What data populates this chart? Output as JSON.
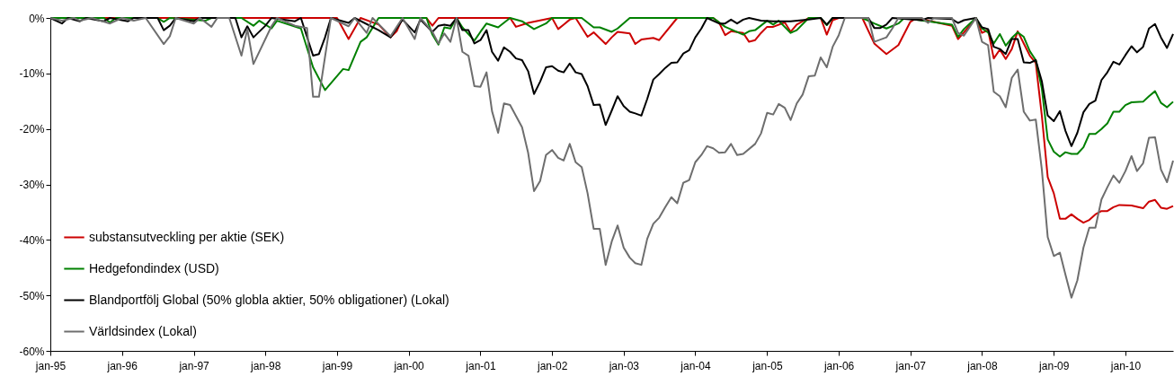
{
  "chart_data": {
    "type": "line",
    "ylim": [
      -60,
      0
    ],
    "yticks": [
      {
        "value": -60,
        "label": "-60%"
      },
      {
        "value": -50,
        "label": "-50%"
      },
      {
        "value": -40,
        "label": "-40%"
      },
      {
        "value": -30,
        "label": "-30%"
      },
      {
        "value": -20,
        "label": "-20%"
      },
      {
        "value": -10,
        "label": "-10%"
      },
      {
        "value": 0,
        "label": "0%"
      }
    ],
    "xlim": [
      "1995-01",
      "2010-09"
    ],
    "xticks": [
      {
        "value": "1995-01",
        "label": "jan-95"
      },
      {
        "value": "1996-01",
        "label": "jan-96"
      },
      {
        "value": "1997-01",
        "label": "jan-97"
      },
      {
        "value": "1998-01",
        "label": "jan-98"
      },
      {
        "value": "1999-01",
        "label": "jan-99"
      },
      {
        "value": "2000-01",
        "label": "jan-00"
      },
      {
        "value": "2001-01",
        "label": "jan-01"
      },
      {
        "value": "2002-01",
        "label": "jan-02"
      },
      {
        "value": "2003-01",
        "label": "jan-03"
      },
      {
        "value": "2004-01",
        "label": "jan-04"
      },
      {
        "value": "2005-01",
        "label": "jan-05"
      },
      {
        "value": "2006-01",
        "label": "jan-06"
      },
      {
        "value": "2007-01",
        "label": "jan-07"
      },
      {
        "value": "2008-01",
        "label": "jan-08"
      },
      {
        "value": "2009-01",
        "label": "jan-09"
      },
      {
        "value": "2010-01",
        "label": "jan-10"
      }
    ],
    "legend": "bottom left",
    "series": [
      {
        "name": "substansutveckling per aktie (SEK)",
        "color": "#cc0000",
        "x": [
          "1995-01",
          "1999-01",
          "1999-03",
          "1999-05",
          "1999-08",
          "1999-10",
          "1999-11",
          "1999-12",
          "2000-04",
          "2000-05",
          "2000-06",
          "2001-06",
          "2001-07",
          "2001-09",
          "2002-01",
          "2002-02",
          "2002-03",
          "2002-04",
          "2002-05",
          "2002-07",
          "2002-08",
          "2002-10",
          "2002-11",
          "2002-12",
          "2003-02",
          "2003-03",
          "2003-04",
          "2003-06",
          "2003-07",
          "2003-10",
          "2004-04",
          "2004-05",
          "2004-06",
          "2004-07",
          "2004-09",
          "2004-10",
          "2004-11",
          "2004-12",
          "2005-01",
          "2005-02",
          "2005-04",
          "2005-05",
          "2005-06",
          "2005-08",
          "2005-10",
          "2005-11",
          "2005-12",
          "2006-01",
          "2006-05",
          "2006-07",
          "2006-09",
          "2006-11",
          "2007-01",
          "2007-02",
          "2007-08",
          "2007-09",
          "2007-10",
          "2007-12",
          "2008-01",
          "2008-02",
          "2008-03",
          "2008-04",
          "2008-05",
          "2008-06",
          "2008-07",
          "2008-08",
          "2008-09",
          "2008-10",
          "2008-11",
          "2008-12",
          "2009-01",
          "2009-02",
          "2009-03",
          "2009-04",
          "2009-05",
          "2009-06",
          "2009-07",
          "2009-08",
          "2009-09",
          "2009-10",
          "2009-11",
          "2009-12",
          "2010-02",
          "2010-04",
          "2010-05",
          "2010-06",
          "2010-07",
          "2010-08",
          "2010-09"
        ],
        "values": [
          0,
          0,
          -3.8,
          0,
          -1.2,
          -3.5,
          -2.4,
          0,
          0,
          -1.4,
          0,
          0,
          -1.6,
          -0.9,
          0,
          -2,
          -1.2,
          -0.3,
          0,
          -3.4,
          -2.6,
          -4.7,
          -3.5,
          -2.5,
          -2.8,
          -4.7,
          -3.9,
          -3.6,
          -4,
          0,
          0,
          -0.8,
          -3.1,
          -2.4,
          -2.7,
          -4.3,
          -4,
          -2.7,
          -1.6,
          -1.6,
          -0.8,
          -2.5,
          -1.2,
          0,
          0,
          -3,
          -0.4,
          0,
          0,
          -4.6,
          -6.5,
          -4.9,
          -0.7,
          0,
          -1.4,
          -3.8,
          -2.6,
          0,
          -2.7,
          -2.2,
          -7.3,
          -5.7,
          -7.4,
          -5.6,
          -2.4,
          -4.6,
          -6.8,
          -8.1,
          -17.6,
          -28.7,
          -31.6,
          -36.2,
          -36.2,
          -35.4,
          -36.2,
          -36.9,
          -36.4,
          -35.4,
          -34.8,
          -34.8,
          -34.1,
          -33.7,
          -33.8,
          -34.3,
          -33.1,
          -32.8,
          -34.2,
          -34.4,
          -33.9
        ]
      },
      {
        "name": "Hedgefondindex (USD)",
        "color": "#008000",
        "x": [
          "1995-01",
          "1995-10",
          "1995-11",
          "1995-12",
          "1996-07",
          "1996-08",
          "1996-09",
          "1997-03",
          "1997-04",
          "1997-09",
          "1997-11",
          "1997-12",
          "1998-02",
          "1998-03",
          "1998-07",
          "1998-09",
          "1998-11",
          "1999-02",
          "1999-03",
          "1999-05",
          "1999-06",
          "1999-08",
          "2000-04",
          "2000-05",
          "2000-06",
          "2000-07",
          "2000-08",
          "2000-09",
          "2000-10",
          "2000-12",
          "2001-01",
          "2001-02",
          "2001-04",
          "2001-06",
          "2001-08",
          "2001-10",
          "2001-12",
          "2002-01",
          "2002-06",
          "2002-08",
          "2002-09",
          "2002-11",
          "2002-12",
          "2003-02",
          "2004-04",
          "2004-06",
          "2004-09",
          "2004-10",
          "2004-11",
          "2005-01",
          "2005-02",
          "2005-03",
          "2005-05",
          "2005-06",
          "2005-08",
          "2005-10",
          "2005-11",
          "2005-12",
          "2006-05",
          "2006-07",
          "2006-09",
          "2006-11",
          "2006-12",
          "2007-08",
          "2007-09",
          "2007-10",
          "2007-12",
          "2008-01",
          "2008-02",
          "2008-03",
          "2008-04",
          "2008-05",
          "2008-06",
          "2008-07",
          "2008-08",
          "2008-09",
          "2008-10",
          "2008-11",
          "2008-12",
          "2009-01",
          "2009-02",
          "2009-03",
          "2009-04",
          "2009-05",
          "2009-06",
          "2009-07",
          "2009-08",
          "2009-09",
          "2009-10",
          "2009-11",
          "2009-12",
          "2010-01",
          "2010-02",
          "2010-04",
          "2010-05",
          "2010-06",
          "2010-07",
          "2010-08",
          "2010-09"
        ],
        "values": [
          0,
          0,
          -0.8,
          0,
          0,
          -0.7,
          0,
          -0.5,
          0,
          0,
          -1.4,
          -0.5,
          -1.9,
          -0.5,
          -1.9,
          -8.9,
          -13,
          -9.2,
          -9.4,
          -4.3,
          -3.5,
          0,
          0,
          -3,
          -4.8,
          -1.7,
          -1.9,
          0,
          -1.7,
          -4.1,
          -2.5,
          -1,
          -1.7,
          0,
          -0.6,
          -2,
          -1,
          0,
          0,
          -1.7,
          -1.7,
          -2.5,
          -1.9,
          0,
          0,
          -1.6,
          -3,
          -2.4,
          -2.2,
          -0.5,
          -1.2,
          -0.5,
          -2.7,
          -2.2,
          0,
          0,
          -1.3,
          0,
          0,
          -1,
          -1.9,
          -1,
          0,
          -1.2,
          -3.4,
          -2,
          0,
          -1.9,
          -2.6,
          -4.6,
          -2.9,
          -5,
          -3.6,
          -2.6,
          -3.4,
          -6,
          -7.6,
          -12.7,
          -21.9,
          -24.1,
          -25,
          -24.2,
          -24.5,
          -24.5,
          -23.3,
          -20.9,
          -20.9,
          -20,
          -19,
          -16.9,
          -16.9,
          -15.7,
          -15.2,
          -15.1,
          -14.1,
          -13.2,
          -15.3,
          -16.1,
          -15.1
        ]
      },
      {
        "name": "Blandportfölj Global (50% globla aktier, 50% obligationer) (Lokal)",
        "color": "#000000",
        "x": [
          "1995-01",
          "1995-03",
          "1995-04",
          "1995-06",
          "1995-07",
          "1995-10",
          "1995-11",
          "1996-02",
          "1996-03",
          "1996-07",
          "1996-08",
          "1996-09",
          "1996-10",
          "1997-01",
          "1997-02",
          "1997-08",
          "1997-09",
          "1997-10",
          "1997-11",
          "1998-01",
          "1998-02",
          "1998-06",
          "1998-07",
          "1998-09",
          "1998-10",
          "1998-11",
          "1998-12",
          "1999-03",
          "1999-04",
          "1999-08",
          "1999-10",
          "1999-12",
          "2000-02",
          "2000-03",
          "2000-05",
          "2000-06",
          "2000-07",
          "2000-08",
          "2000-09",
          "2000-10",
          "2000-11",
          "2000-12",
          "2001-01",
          "2001-02",
          "2001-03",
          "2001-04",
          "2001-05",
          "2001-06",
          "2001-07",
          "2001-08",
          "2001-09",
          "2001-10",
          "2001-11",
          "2001-12",
          "2002-01",
          "2002-02",
          "2002-03",
          "2002-04",
          "2002-05",
          "2002-06",
          "2002-07",
          "2002-08",
          "2002-09",
          "2002-10",
          "2002-11",
          "2002-12",
          "2003-01",
          "2003-02",
          "2003-03",
          "2003-04",
          "2003-05",
          "2003-06",
          "2003-07",
          "2003-08",
          "2003-09",
          "2003-10",
          "2003-11",
          "2003-12",
          "2004-01",
          "2004-02",
          "2004-03",
          "2004-05",
          "2004-06",
          "2004-07",
          "2004-08",
          "2004-09",
          "2004-10",
          "2004-12",
          "2005-02",
          "2005-05",
          "2005-08",
          "2005-10",
          "2005-11",
          "2005-12",
          "2006-06",
          "2006-07",
          "2006-08",
          "2006-09",
          "2006-10",
          "2007-03",
          "2007-04",
          "2007-08",
          "2007-09",
          "2007-10",
          "2007-12",
          "2008-01",
          "2008-02",
          "2008-03",
          "2008-04",
          "2008-05",
          "2008-06",
          "2008-07",
          "2008-08",
          "2008-09",
          "2008-10",
          "2008-11",
          "2008-12",
          "2009-01",
          "2009-02",
          "2009-03",
          "2009-04",
          "2009-05",
          "2009-06",
          "2009-07",
          "2009-08",
          "2009-09",
          "2009-10",
          "2009-11",
          "2009-12",
          "2010-01",
          "2010-02",
          "2010-03",
          "2010-04",
          "2010-05",
          "2010-06",
          "2010-07",
          "2010-08",
          "2010-09"
        ],
        "values": [
          0,
          -1,
          0,
          -0.6,
          0,
          -0.6,
          0,
          -0.6,
          0,
          0,
          -2.2,
          -1.4,
          0,
          -0.6,
          0,
          0,
          -3.5,
          -1.5,
          -3.5,
          -1.4,
          0,
          -0.6,
          0,
          -6.8,
          -6.5,
          -3.5,
          0,
          -0.9,
          0,
          -2.2,
          -3.5,
          -0.3,
          -2.6,
          -0.3,
          -2.5,
          -1.4,
          -1.2,
          -1.4,
          0,
          -2.2,
          -2.2,
          -4.6,
          -4,
          -2.2,
          -6.1,
          -7.7,
          -5.3,
          -6.1,
          -7.3,
          -7.6,
          -9.6,
          -13.7,
          -11.5,
          -8.9,
          -8.7,
          -9.5,
          -9.8,
          -8.2,
          -9.8,
          -10.1,
          -12.3,
          -15.7,
          -15.6,
          -19.3,
          -16.7,
          -14.1,
          -15.9,
          -16.9,
          -17.2,
          -17.6,
          -14.6,
          -11.1,
          -10.1,
          -9,
          -8.1,
          -8,
          -6.4,
          -5.8,
          -3.5,
          -1.9,
          0,
          -1,
          -1,
          -0.3,
          -1,
          -0.3,
          0,
          -0.5,
          -0.6,
          -0.6,
          -0.3,
          0,
          -1.2,
          0,
          0,
          -1.8,
          -1.8,
          -1.2,
          0,
          -0.4,
          0,
          -0.2,
          -0.9,
          -0.4,
          0,
          -1.7,
          -2,
          -5.2,
          -5.6,
          -6.5,
          -3.8,
          -3.8,
          -8,
          -8.1,
          -7.6,
          -11.4,
          -17.6,
          -18.6,
          -16.8,
          -20.3,
          -23.1,
          -20.7,
          -17,
          -15.5,
          -14.9,
          -11.2,
          -9.8,
          -7.9,
          -8.4,
          -6.7,
          -5.1,
          -6.2,
          -5.2,
          -1.9,
          -1.1,
          -3.5,
          -5.4,
          -2.9
        ]
      },
      {
        "name": "Världsindex (Lokal)",
        "color": "#6e6e6e",
        "x": [
          "1995-01",
          "1995-03",
          "1995-05",
          "1995-06",
          "1995-08",
          "1995-11",
          "1996-01",
          "1996-03",
          "1996-05",
          "1996-08",
          "1996-09",
          "1996-10",
          "1997-01",
          "1997-02",
          "1997-04",
          "1997-05",
          "1997-07",
          "1997-09",
          "1997-10",
          "1997-11",
          "1998-02",
          "1998-03",
          "1998-06",
          "1998-08",
          "1998-09",
          "1998-10",
          "1998-12",
          "1999-03",
          "1999-04",
          "1999-06",
          "1999-07",
          "1999-10",
          "1999-12",
          "2000-02",
          "2000-03",
          "2000-05",
          "2000-06",
          "2000-07",
          "2000-08",
          "2000-09",
          "2000-10",
          "2000-11",
          "2000-12",
          "2001-01",
          "2001-02",
          "2001-03",
          "2001-04",
          "2001-05",
          "2001-06",
          "2001-08",
          "2001-09",
          "2001-10",
          "2001-11",
          "2001-12",
          "2002-01",
          "2002-02",
          "2002-03",
          "2002-04",
          "2002-05",
          "2002-06",
          "2002-07",
          "2002-08",
          "2002-09",
          "2002-10",
          "2002-11",
          "2002-12",
          "2003-01",
          "2003-02",
          "2003-03",
          "2003-04",
          "2003-05",
          "2003-06",
          "2003-07",
          "2003-08",
          "2003-09",
          "2003-10",
          "2003-11",
          "2003-12",
          "2004-01",
          "2004-02",
          "2004-03",
          "2004-04",
          "2004-05",
          "2004-06",
          "2004-07",
          "2004-08",
          "2004-09",
          "2004-11",
          "2004-12",
          "2005-01",
          "2005-02",
          "2005-03",
          "2005-04",
          "2005-05",
          "2005-06",
          "2005-07",
          "2005-08",
          "2005-09",
          "2005-10",
          "2005-11",
          "2005-12",
          "2006-01",
          "2006-02",
          "2006-06",
          "2006-07",
          "2006-09",
          "2006-10",
          "2006-11",
          "2007-03",
          "2007-04",
          "2007-05",
          "2007-08",
          "2007-09",
          "2007-10",
          "2007-12",
          "2008-01",
          "2008-02",
          "2008-03",
          "2008-04",
          "2008-05",
          "2008-06",
          "2008-07",
          "2008-08",
          "2008-09",
          "2008-10",
          "2008-11",
          "2008-12",
          "2009-01",
          "2009-02",
          "2009-03",
          "2009-04",
          "2009-05",
          "2009-06",
          "2009-07",
          "2009-08",
          "2009-09",
          "2009-10",
          "2009-11",
          "2009-12",
          "2010-01",
          "2010-02",
          "2010-03",
          "2010-04",
          "2010-05",
          "2010-06",
          "2010-07",
          "2010-08",
          "2010-09"
        ],
        "values": [
          0,
          -0.5,
          0,
          -0.5,
          0,
          -1,
          0,
          -0.5,
          0,
          -4.7,
          -3.3,
          0,
          -1,
          0,
          -1.6,
          0,
          0,
          -6.8,
          -2,
          -8.3,
          -1.5,
          0,
          -1.4,
          -1.8,
          -14.2,
          -14.2,
          0,
          -1.5,
          0,
          -2.7,
          0,
          -3.3,
          0,
          -3.8,
          0,
          -2.5,
          -4.6,
          -2.8,
          -4.3,
          0,
          -6.1,
          -6.8,
          -12.3,
          -12.4,
          -9.8,
          -16.8,
          -20.7,
          -15.4,
          -15.7,
          -19.7,
          -24.3,
          -31.2,
          -29.4,
          -24.7,
          -23.8,
          -25.2,
          -25.7,
          -22.7,
          -26,
          -26.9,
          -31.6,
          -38,
          -38,
          -44.5,
          -40.3,
          -37.4,
          -41.4,
          -43.2,
          -44.2,
          -44.5,
          -39.8,
          -37.1,
          -36,
          -34.1,
          -32.3,
          -33.4,
          -29.7,
          -29.2,
          -26,
          -24.7,
          -23.1,
          -23.5,
          -24.3,
          -24.2,
          -22.7,
          -24.7,
          -24.5,
          -22.7,
          -20.8,
          -17.1,
          -17.4,
          -15.5,
          -16.2,
          -18.4,
          -15.4,
          -13.8,
          -10.5,
          -10.4,
          -7.1,
          -8.9,
          -5.2,
          -3.1,
          0,
          0,
          -4.3,
          -3.5,
          -1.9,
          0,
          0,
          -0.9,
          0,
          0,
          -2.7,
          -3.2,
          0,
          -4.3,
          -4.9,
          -13.3,
          -14.1,
          -16.1,
          -10.8,
          -9.3,
          -16.9,
          -18.5,
          -18.3,
          -27.3,
          -39.5,
          -42.9,
          -42.3,
          -46.2,
          -50.4,
          -47.3,
          -41.4,
          -37.8,
          -37.8,
          -32.7,
          -30.5,
          -28.4,
          -29.7,
          -27.6,
          -24.9,
          -27.6,
          -26.2,
          -21.6,
          -21.5,
          -27.3,
          -29.6,
          -25.7
        ]
      }
    ]
  }
}
